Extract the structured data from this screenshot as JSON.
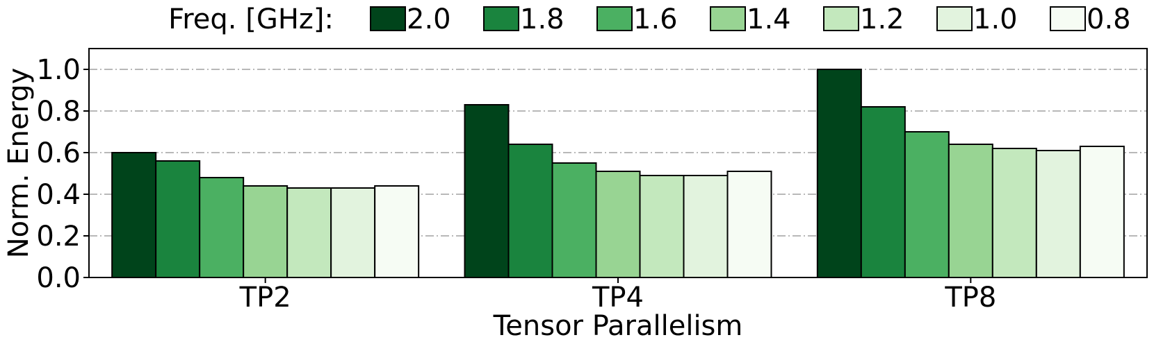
{
  "chart_data": {
    "type": "bar",
    "title": "",
    "xlabel": "Tensor Parallelism",
    "ylabel": "Norm. Energy",
    "ylim": [
      0,
      1.1
    ],
    "yticks": [
      "0.0",
      "0.2",
      "0.4",
      "0.6",
      "0.8",
      "1.0"
    ],
    "grid": "horizontal dash-dot",
    "legend": {
      "title": "Freq. [GHz]:",
      "placement": "top, outside plot, single row"
    },
    "categories": [
      "TP2",
      "TP4",
      "TP8"
    ],
    "series": [
      {
        "name": "2.0",
        "color": "#00441b",
        "values": [
          0.6,
          0.83,
          1.0
        ]
      },
      {
        "name": "1.8",
        "color": "#1a843e",
        "values": [
          0.56,
          0.64,
          0.82
        ]
      },
      {
        "name": "1.6",
        "color": "#4bb062",
        "values": [
          0.48,
          0.55,
          0.7
        ]
      },
      {
        "name": "1.4",
        "color": "#98d493",
        "values": [
          0.44,
          0.51,
          0.64
        ]
      },
      {
        "name": "1.2",
        "color": "#c3e8bd",
        "values": [
          0.43,
          0.49,
          0.62
        ]
      },
      {
        "name": "1.0",
        "color": "#e2f3de",
        "values": [
          0.43,
          0.49,
          0.61
        ]
      },
      {
        "name": "0.8",
        "color": "#f6fcf4",
        "values": [
          0.44,
          0.51,
          0.63
        ]
      }
    ]
  }
}
